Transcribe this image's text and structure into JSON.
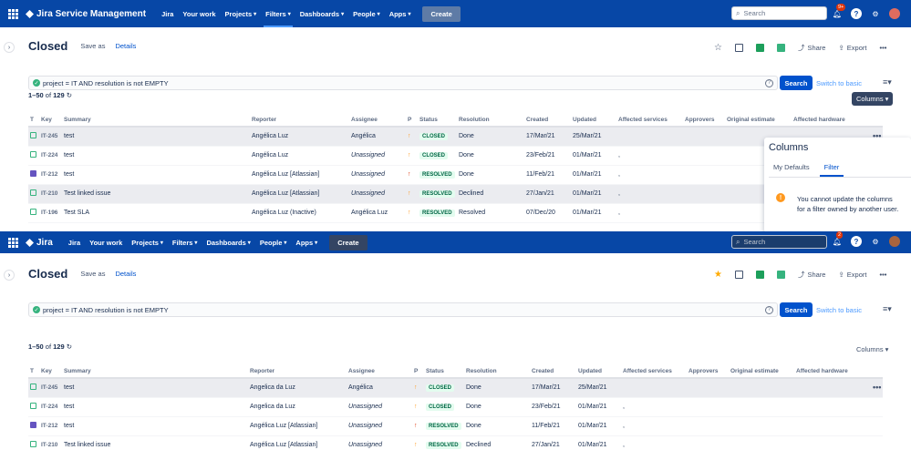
{
  "top": {
    "nav": {
      "brand": "Jira Service Management",
      "menu": [
        "Jira",
        "Your work",
        "Projects",
        "Filters",
        "Dashboards",
        "People",
        "Apps"
      ],
      "create": "Create",
      "search_placeholder": "Search",
      "badge": "9+"
    },
    "header": {
      "title": "Closed",
      "save_as": "Save as",
      "details": "Details"
    },
    "tools": {
      "share": "Share",
      "export": "Export"
    },
    "jql": "project = IT AND resolution is not EMPTY",
    "search_button": "Search",
    "switch_basic": "Switch to basic",
    "count": {
      "range": "1–50",
      "of": "of",
      "total": "129"
    },
    "columns_button": "Columns",
    "table": {
      "headers": [
        "T",
        "Key",
        "Summary",
        "Reporter",
        "Assignee",
        "P",
        "Status",
        "Resolution",
        "Created",
        "Updated",
        "Affected services",
        "Approvers",
        "Original estimate",
        "Affected hardware"
      ],
      "rows": [
        {
          "key": "IT-245",
          "summary": "test",
          "reporter": "Angélica Luz",
          "assignee": "Angélica",
          "status": "CLOSED",
          "resolution": "Done",
          "created": "17/Mar/21",
          "updated": "25/Mar/21",
          "affected": ""
        },
        {
          "key": "IT-224",
          "summary": "test",
          "reporter": "Angélica Luz",
          "assignee": "Unassigned",
          "status": "CLOSED",
          "resolution": "Done",
          "created": "23/Feb/21",
          "updated": "01/Mar/21",
          "affected": ","
        },
        {
          "key": "IT-212",
          "summary": "test",
          "reporter": "Angélica Luz [Atlassian]",
          "assignee": "Unassigned",
          "status": "RESOLVED",
          "resolution": "Done",
          "created": "11/Feb/21",
          "updated": "01/Mar/21",
          "affected": ","
        },
        {
          "key": "IT-210",
          "summary": "Test linked issue",
          "reporter": "Angélica Luz [Atlassian]",
          "assignee": "Unassigned",
          "status": "RESOLVED",
          "resolution": "Declined",
          "created": "27/Jan/21",
          "updated": "01/Mar/21",
          "affected": ","
        },
        {
          "key": "IT-196",
          "summary": "Test SLA",
          "reporter": "Angélica Luz (Inactive)",
          "assignee": "Angélica Luz",
          "status": "RESOLVED",
          "resolution": "Resolved",
          "created": "07/Dec/20",
          "updated": "01/Mar/21",
          "affected": ","
        }
      ]
    },
    "columns_panel": {
      "title": "Columns",
      "tab_defaults": "My Defaults",
      "tab_filter": "Filter",
      "message": "You cannot update the columns for a filter owned by another user."
    }
  },
  "bottom": {
    "nav": {
      "brand": "Jira",
      "menu": [
        "Jira",
        "Your work",
        "Projects",
        "Filters",
        "Dashboards",
        "People",
        "Apps"
      ],
      "create": "Create",
      "search_placeholder": "Search",
      "badge": "2"
    },
    "header": {
      "title": "Closed",
      "save_as": "Save as",
      "details": "Details"
    },
    "tools": {
      "share": "Share",
      "export": "Export"
    },
    "jql": "project = IT AND resolution is not EMPTY",
    "search_button": "Search",
    "switch_basic": "Switch to basic",
    "count": {
      "range": "1–50",
      "of": "of",
      "total": "129"
    },
    "columns_button": "Columns",
    "table": {
      "headers": [
        "T",
        "Key",
        "Summary",
        "Reporter",
        "Assignee",
        "P",
        "Status",
        "Resolution",
        "Created",
        "Updated",
        "Affected services",
        "Approvers",
        "Original estimate",
        "Affected hardware"
      ],
      "rows": [
        {
          "key": "IT-245",
          "summary": "test",
          "reporter": "Angelica da Luz",
          "assignee": "Angélica",
          "status": "CLOSED",
          "resolution": "Done",
          "created": "17/Mar/21",
          "updated": "25/Mar/21",
          "affected": ""
        },
        {
          "key": "IT-224",
          "summary": "test",
          "reporter": "Angelica da Luz",
          "assignee": "Unassigned",
          "status": "CLOSED",
          "resolution": "Done",
          "created": "23/Feb/21",
          "updated": "01/Mar/21",
          "affected": ","
        },
        {
          "key": "IT-212",
          "summary": "test",
          "reporter": "Angélica Luz [Atlassian]",
          "assignee": "Unassigned",
          "status": "RESOLVED",
          "resolution": "Done",
          "created": "11/Feb/21",
          "updated": "01/Mar/21",
          "affected": ","
        },
        {
          "key": "IT-210",
          "summary": "Test linked issue",
          "reporter": "Angélica Luz [Atlassian]",
          "assignee": "Unassigned",
          "status": "RESOLVED",
          "resolution": "Declined",
          "created": "27/Jan/21",
          "updated": "01/Mar/21",
          "affected": ","
        }
      ]
    }
  }
}
